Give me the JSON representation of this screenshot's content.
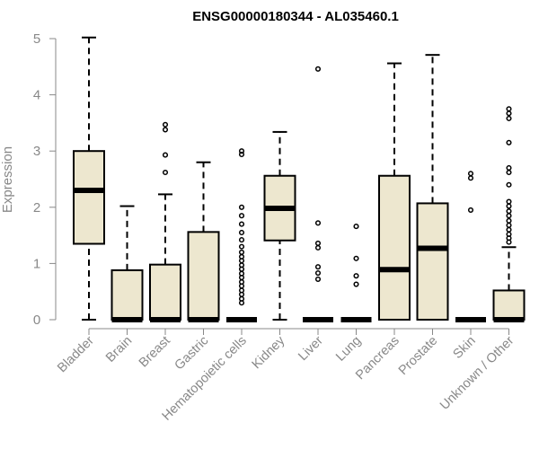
{
  "chart_data": {
    "type": "boxplot",
    "title": "ENSG00000180344 - AL035460.1",
    "ylabel": "Expression",
    "xlabel": "",
    "ylim": [
      0,
      5
    ],
    "yticks": [
      0,
      1,
      2,
      3,
      4,
      5
    ],
    "ytick_labels": [
      "0",
      "1",
      "2",
      "3",
      "4",
      "5"
    ],
    "categories": [
      "Bladder",
      "Brain",
      "Breast",
      "Gastric",
      "Hematopoietic cells",
      "Kidney",
      "Liver",
      "Lung",
      "Pancreas",
      "Prostate",
      "Skin",
      "Unknown / Other"
    ],
    "boxes": [
      {
        "category": "Bladder",
        "whisker_low": 0,
        "q1": 1.35,
        "median": 2.3,
        "q3": 3.0,
        "whisker_high": 5.02,
        "outliers": []
      },
      {
        "category": "Brain",
        "whisker_low": 0,
        "q1": 0,
        "median": 0,
        "q3": 0.88,
        "whisker_high": 2.02,
        "outliers": []
      },
      {
        "category": "Breast",
        "whisker_low": 0,
        "q1": 0,
        "median": 0,
        "q3": 0.98,
        "whisker_high": 2.23,
        "outliers": [
          2.62,
          2.93,
          3.38,
          3.47
        ]
      },
      {
        "category": "Gastric",
        "whisker_low": 0,
        "q1": 0,
        "median": 0,
        "q3": 1.56,
        "whisker_high": 2.8,
        "outliers": []
      },
      {
        "category": "Hematopoietic cells",
        "whisker_low": 0,
        "q1": 0,
        "median": 0,
        "q3": 0,
        "whisker_high": 0,
        "outliers": [
          0.3,
          0.37,
          0.45,
          0.52,
          0.6,
          0.67,
          0.75,
          0.82,
          0.9,
          0.97,
          1.05,
          1.12,
          1.2,
          1.3,
          1.42,
          1.55,
          1.7,
          1.85,
          2.0,
          2.94,
          3.0
        ]
      },
      {
        "category": "Kidney",
        "whisker_low": 0,
        "q1": 1.41,
        "median": 1.98,
        "q3": 2.56,
        "whisker_high": 3.34,
        "outliers": []
      },
      {
        "category": "Liver",
        "whisker_low": 0,
        "q1": 0,
        "median": 0,
        "q3": 0,
        "whisker_high": 0,
        "outliers": [
          0.72,
          0.83,
          0.94,
          1.28,
          1.36,
          1.72,
          4.46
        ]
      },
      {
        "category": "Lung",
        "whisker_low": 0,
        "q1": 0,
        "median": 0,
        "q3": 0,
        "whisker_high": 0,
        "outliers": [
          0.63,
          0.78,
          1.09,
          1.66
        ]
      },
      {
        "category": "Pancreas",
        "whisker_low": 0,
        "q1": 0,
        "median": 0.89,
        "q3": 2.56,
        "whisker_high": 4.56,
        "outliers": []
      },
      {
        "category": "Prostate",
        "whisker_low": 0,
        "q1": 0,
        "median": 1.27,
        "q3": 2.07,
        "whisker_high": 4.71,
        "outliers": []
      },
      {
        "category": "Skin",
        "whisker_low": 0,
        "q1": 0,
        "median": 0,
        "q3": 0,
        "whisker_high": 0,
        "outliers": [
          1.95,
          2.52,
          2.6
        ]
      },
      {
        "category": "Unknown / Other",
        "whisker_low": 0,
        "q1": 0,
        "median": 0,
        "q3": 0.52,
        "whisker_high": 1.29,
        "outliers": [
          1.38,
          1.45,
          1.52,
          1.6,
          1.68,
          1.76,
          1.85,
          1.93,
          2.02,
          2.1,
          2.4,
          2.62,
          2.7,
          3.15,
          3.58,
          3.67,
          3.75
        ]
      }
    ],
    "colors": {
      "box_fill": "#ede7cf",
      "stroke": "#000000",
      "axis": "#888888",
      "label": "#888888",
      "title": "#000000"
    }
  }
}
